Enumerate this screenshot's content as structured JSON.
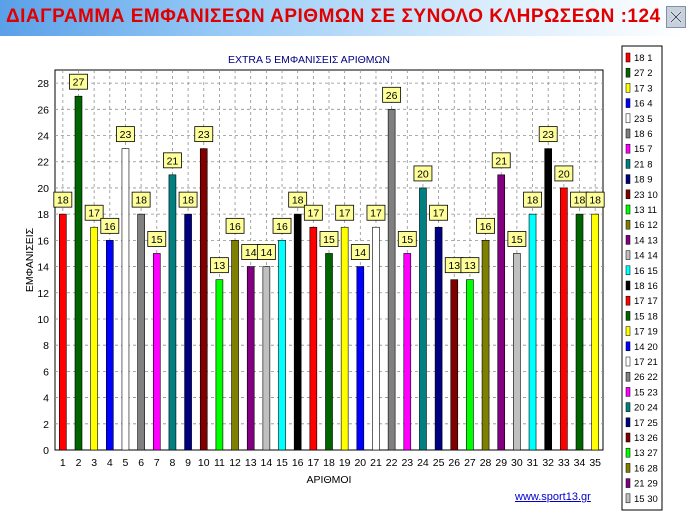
{
  "window": {
    "title": "ΔΙΑΓΡΑΜΜΑ ΕΜΦΑΝΙΣΕΩΝ ΑΡΙΘΜΩΝ ΣΕ ΣΥΝΟΛΟ ΚΛΗΡΩΣΕΩΝ :124",
    "close_icon": "close-icon"
  },
  "footer": {
    "link_text": "www.sport13.gr"
  },
  "colors": {
    "title_text": "#e00000",
    "palette": [
      "#ff0000",
      "#006400",
      "#ffff00",
      "#0000ff",
      "#ffffff",
      "#808080",
      "#ff00ff",
      "#008080",
      "#000080",
      "#800000",
      "#00ff00",
      "#808000",
      "#800080",
      "#c0c0c0",
      "#00ffff",
      "#000000"
    ]
  },
  "chart_data": {
    "type": "bar",
    "title": "EXTRA 5  ΕΜΦΑΝΙΣΕΙΣ ΑΡΙΘΜΩΝ",
    "xlabel": "ΑΡΙΘΜΟΙ",
    "ylabel": "ΕΜΦΑΝΙΣΕΙΣ",
    "ylim": [
      0,
      29
    ],
    "yticks": [
      0,
      2,
      4,
      6,
      8,
      10,
      12,
      14,
      16,
      18,
      20,
      22,
      24,
      26,
      28
    ],
    "grid": true,
    "legend_position": "right",
    "categories": [
      "1",
      "2",
      "3",
      "4",
      "5",
      "6",
      "7",
      "8",
      "9",
      "10",
      "11",
      "12",
      "13",
      "14",
      "15",
      "16",
      "17",
      "18",
      "19",
      "20",
      "21",
      "22",
      "23",
      "24",
      "25",
      "26",
      "27",
      "28",
      "29",
      "30",
      "31",
      "32",
      "33",
      "34",
      "35"
    ],
    "values": [
      18,
      27,
      17,
      16,
      23,
      18,
      15,
      21,
      18,
      23,
      13,
      16,
      14,
      14,
      16,
      18,
      17,
      15,
      17,
      14,
      17,
      26,
      15,
      20,
      17,
      13,
      13,
      16,
      21,
      15,
      18,
      23,
      20,
      18,
      18
    ],
    "color_indexes": [
      0,
      1,
      2,
      3,
      4,
      5,
      6,
      7,
      8,
      9,
      10,
      11,
      12,
      13,
      14,
      15,
      0,
      1,
      2,
      3,
      4,
      5,
      6,
      7,
      8,
      9,
      10,
      11,
      12,
      13,
      14,
      15,
      0,
      1,
      2
    ],
    "legend": [
      {
        "text": "18 1",
        "color": 0
      },
      {
        "text": "27 2",
        "color": 1
      },
      {
        "text": "17 3",
        "color": 2
      },
      {
        "text": "16 4",
        "color": 3
      },
      {
        "text": "23 5",
        "color": 4
      },
      {
        "text": "18 6",
        "color": 5
      },
      {
        "text": "15 7",
        "color": 6
      },
      {
        "text": "21 8",
        "color": 7
      },
      {
        "text": "18 9",
        "color": 8
      },
      {
        "text": "23 10",
        "color": 9
      },
      {
        "text": "13 11",
        "color": 10
      },
      {
        "text": "16 12",
        "color": 11
      },
      {
        "text": "14 13",
        "color": 12
      },
      {
        "text": "14 14",
        "color": 13
      },
      {
        "text": "16 15",
        "color": 14
      },
      {
        "text": "18 16",
        "color": 15
      },
      {
        "text": "17 17",
        "color": 0
      },
      {
        "text": "15 18",
        "color": 1
      },
      {
        "text": "17 19",
        "color": 2
      },
      {
        "text": "14 20",
        "color": 3
      },
      {
        "text": "17 21",
        "color": 4
      },
      {
        "text": "26 22",
        "color": 5
      },
      {
        "text": "15 23",
        "color": 6
      },
      {
        "text": "20 24",
        "color": 7
      },
      {
        "text": "17 25",
        "color": 8
      },
      {
        "text": "13 26",
        "color": 9
      },
      {
        "text": "13 27",
        "color": 10
      },
      {
        "text": "16 28",
        "color": 11
      },
      {
        "text": "21 29",
        "color": 12
      },
      {
        "text": "15 30",
        "color": 13
      }
    ]
  }
}
